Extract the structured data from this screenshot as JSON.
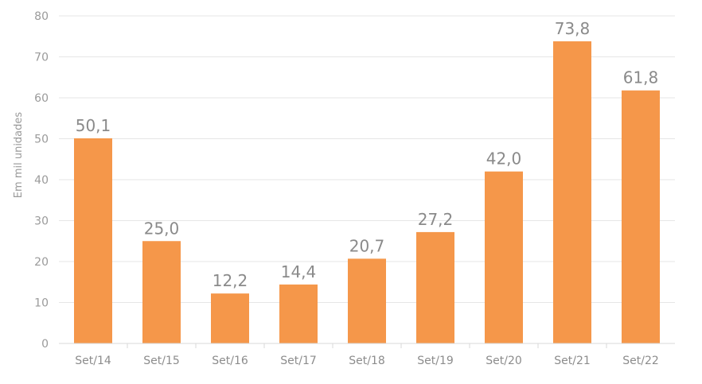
{
  "chart_data": {
    "type": "bar",
    "title": "",
    "xlabel": "",
    "ylabel": "Em mil unidades",
    "categories": [
      "Set/14",
      "Set/15",
      "Set/16",
      "Set/17",
      "Set/18",
      "Set/19",
      "Set/20",
      "Set/21",
      "Set/22"
    ],
    "values": [
      50.1,
      25.0,
      12.2,
      14.4,
      20.7,
      27.2,
      42.0,
      73.8,
      61.8
    ],
    "data_labels": [
      "50,1",
      "25,0",
      "12,2",
      "14,4",
      "20,7",
      "27,2",
      "42,0",
      "73,8",
      "61,8"
    ],
    "ylim": [
      0,
      80
    ],
    "yticks": [
      "0",
      "10",
      "20",
      "30",
      "40",
      "50",
      "60",
      "70",
      "80"
    ],
    "grid": true,
    "legend": "none",
    "bar_color": "#F5974A"
  }
}
